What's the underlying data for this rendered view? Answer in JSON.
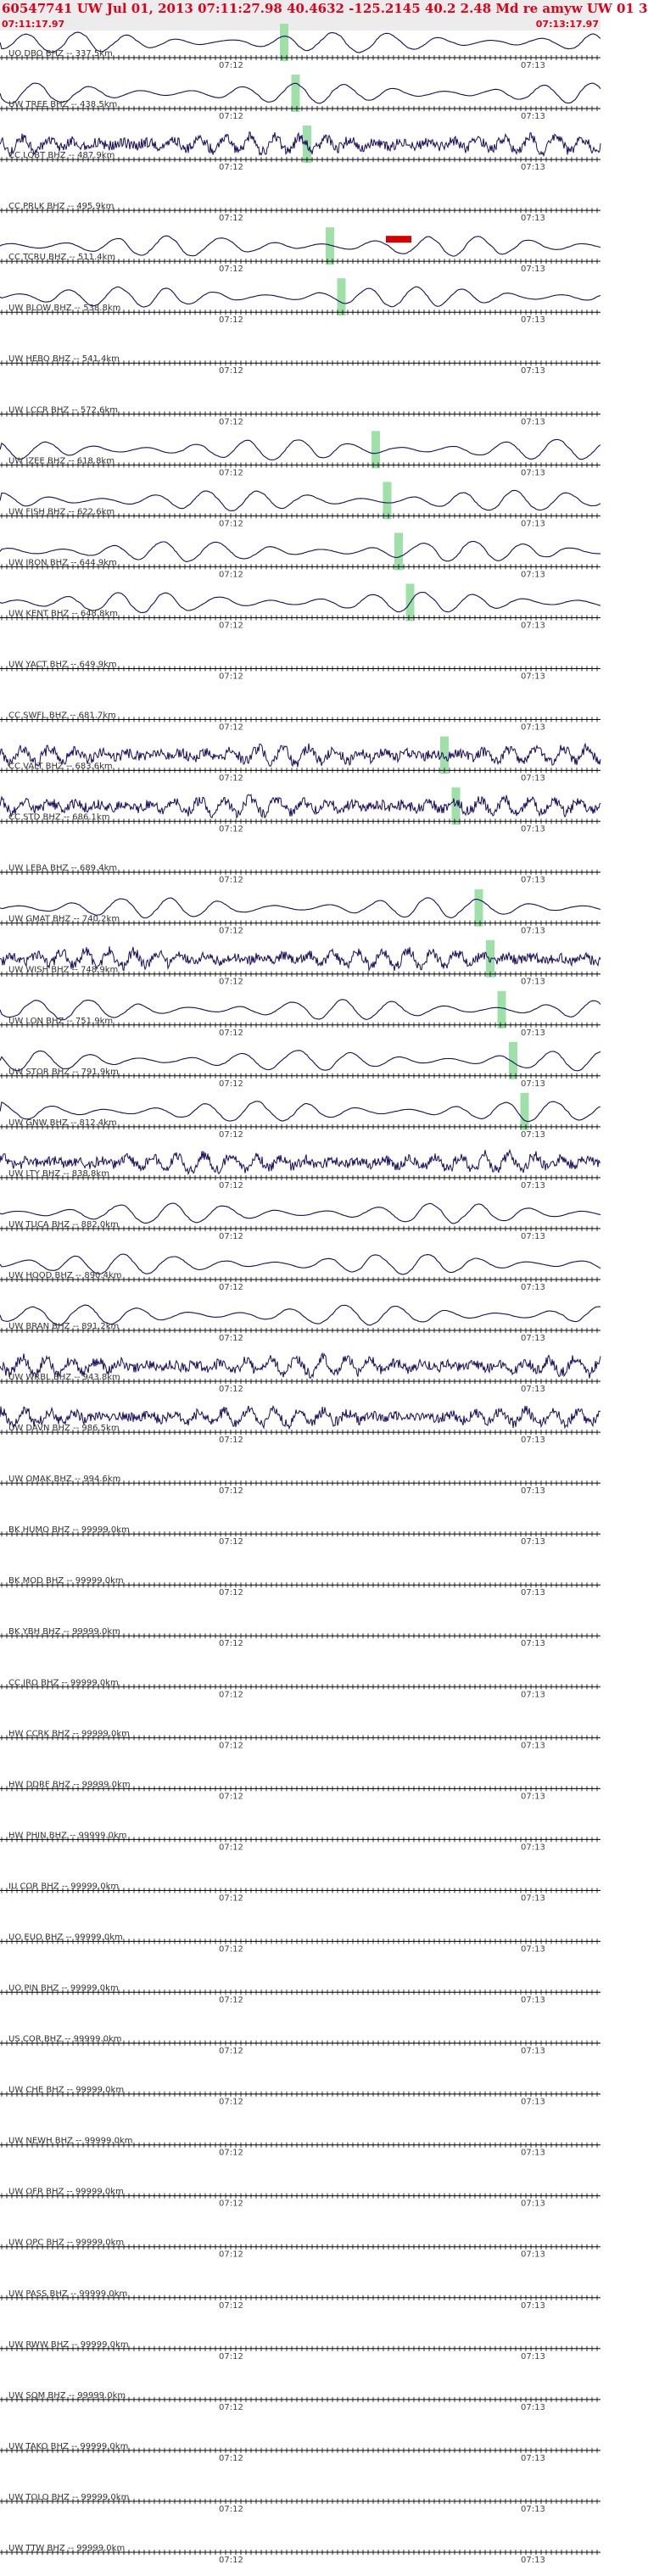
{
  "header": {
    "title": "60547741 UW Jul 01, 2013 07:11:27.98   40.4632 -125.2145 40.2 2.48 Md re amyw UW 01   3",
    "start_time": "07:11:17.97",
    "end_time": "07:13:17.97"
  },
  "colors": {
    "trace": "#1a0a5e",
    "pick": "#9fe0a8",
    "pick_red": "#d40000",
    "header_text": "#e0001a"
  },
  "chart_data": {
    "type": "line",
    "x_tick_labels": [
      "07:12",
      "07:13"
    ],
    "channels": [
      {
        "label": "UO DBO BHZ -- 337.5km",
        "signal": true
      },
      {
        "label": "UW TREE BHZ -- 438.5km",
        "signal": true
      },
      {
        "label": "CC LOBT BHZ -- 487.9km",
        "signal": true
      },
      {
        "label": "CC PRLK BHZ -- 495.9km",
        "signal": false
      },
      {
        "label": "CC TCRU BHZ -- 511.4km",
        "signal": true
      },
      {
        "label": "UW BLOW BHZ -- 538.8km",
        "signal": true
      },
      {
        "label": "UW HEBO BHZ -- 541.4km",
        "signal": false
      },
      {
        "label": "UW LCCR BHZ -- 572.6km",
        "signal": false
      },
      {
        "label": "UW IZEE BHZ -- 618.8km",
        "signal": true
      },
      {
        "label": "UW FISH BHZ -- 622.6km",
        "signal": true
      },
      {
        "label": "UW IRON BHZ -- 644.9km",
        "signal": true
      },
      {
        "label": "UW KENT BHZ -- 648.8km",
        "signal": true
      },
      {
        "label": "UW YACT BHZ -- 649.9km",
        "signal": false
      },
      {
        "label": "CC SWFL BHZ -- 681.7km",
        "signal": false
      },
      {
        "label": "CC VALT BHZ -- 683.6km",
        "signal": true
      },
      {
        "label": "CC STD BHZ -- 686.1km",
        "signal": true
      },
      {
        "label": "UW LEBA BHZ -- 689.4km",
        "signal": false
      },
      {
        "label": "UW GMAT BHZ -- 740.2km",
        "signal": true
      },
      {
        "label": "UW WISH BHZ -- 748.9km",
        "signal": true
      },
      {
        "label": "UW LON BHZ -- 751.9km",
        "signal": true
      },
      {
        "label": "UW STOR BHZ -- 791.9km",
        "signal": true
      },
      {
        "label": "UW GNW BHZ -- 812.4km",
        "signal": true
      },
      {
        "label": "UW LTY BHZ -- 838.8km",
        "signal": true
      },
      {
        "label": "UW TUCA BHZ -- 882.0km",
        "signal": true
      },
      {
        "label": "UW HOOD BHZ -- 890.4km",
        "signal": true
      },
      {
        "label": "UW BRAN BHZ -- 891.2km",
        "signal": true
      },
      {
        "label": "UW WRBL BHZ -- 943.8km",
        "signal": true
      },
      {
        "label": "UW DAVN BHZ -- 986.5km",
        "signal": true
      },
      {
        "label": "UW OMAK BHZ -- 994.6km",
        "signal": false
      },
      {
        "label": "BK HUMO BHZ -- 99999.0km",
        "signal": false
      },
      {
        "label": "BK MOD BHZ -- 99999.0km",
        "signal": false
      },
      {
        "label": "BK YBH BHZ -- 99999.0km",
        "signal": false
      },
      {
        "label": "CC JRO BHZ -- 99999.0km",
        "signal": false
      },
      {
        "label": "HW CCRK BHZ -- 99999.0km",
        "signal": false
      },
      {
        "label": "HW DDRF BHZ -- 99999.0km",
        "signal": false
      },
      {
        "label": "HW PHIN BHZ -- 99999.0km",
        "signal": false
      },
      {
        "label": "IU COR BHZ -- 99999.0km",
        "signal": false
      },
      {
        "label": "UO EUO BHZ -- 99999.0km",
        "signal": false
      },
      {
        "label": "UO PIN BHZ -- 99999.0km",
        "signal": false
      },
      {
        "label": "US COR BHZ -- 99999.0km",
        "signal": false
      },
      {
        "label": "UW CHE BHZ -- 99999.0km",
        "signal": false
      },
      {
        "label": "UW NEWH BHZ -- 99999.0km",
        "signal": false
      },
      {
        "label": "UW OFR BHZ -- 99999.0km",
        "signal": false
      },
      {
        "label": "UW OPC BHZ -- 99999.0km",
        "signal": false
      },
      {
        "label": "UW PASS BHZ -- 99999.0km",
        "signal": false
      },
      {
        "label": "UW RWW BHZ -- 99999.0km",
        "signal": false
      },
      {
        "label": "UW SQM BHZ -- 99999.0km",
        "signal": false
      },
      {
        "label": "UW TAKO BHZ -- 99999.0km",
        "signal": false
      },
      {
        "label": "UW TOLO BHZ -- 99999.0km",
        "signal": false
      },
      {
        "label": "UW TTW BHZ -- 99999.0km",
        "signal": false
      }
    ]
  }
}
